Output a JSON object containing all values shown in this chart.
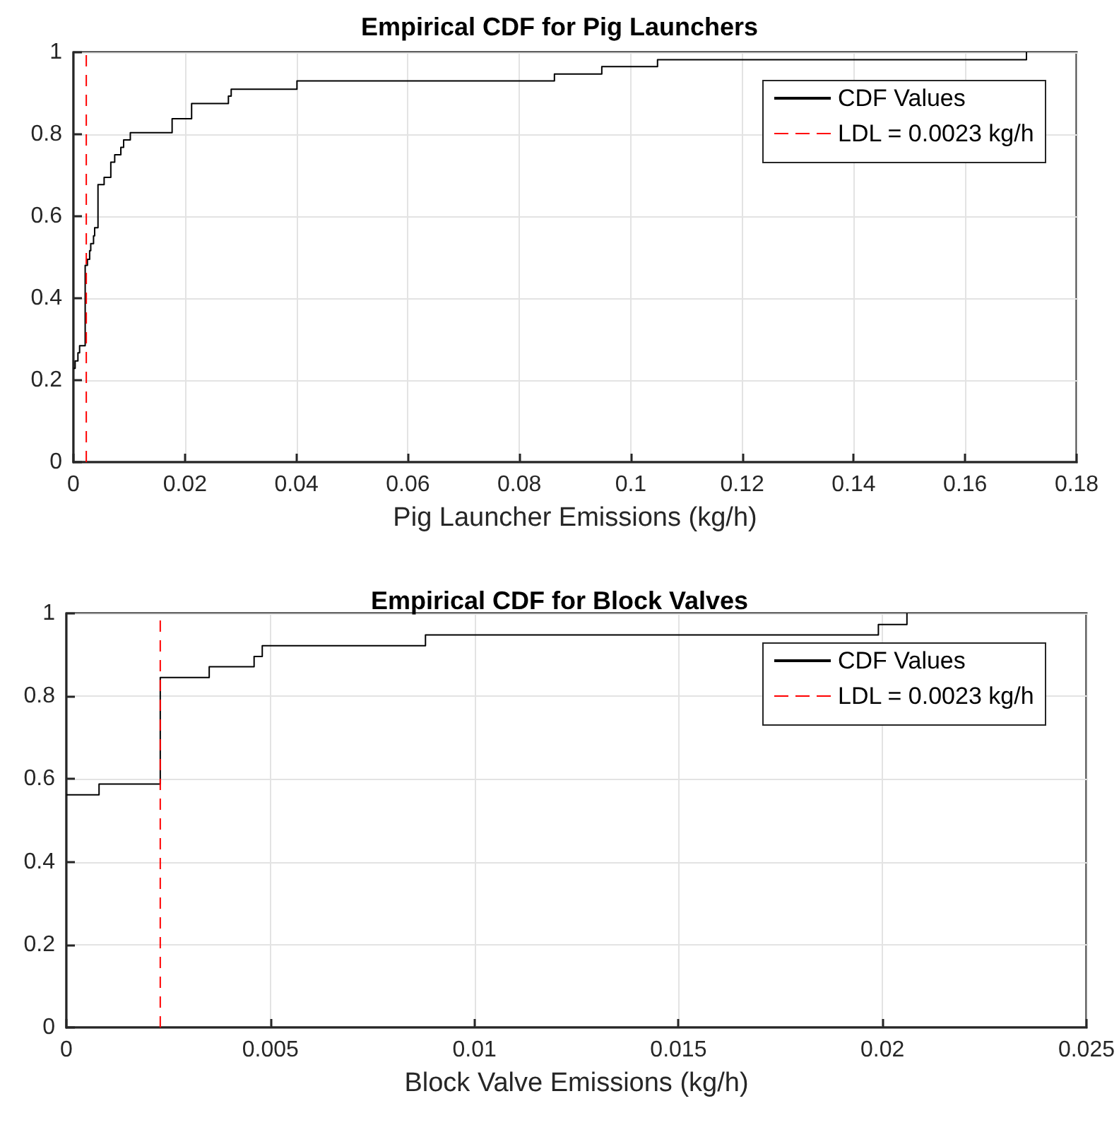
{
  "chart_data": [
    {
      "type": "step",
      "title": "Empirical CDF for Pig Launchers",
      "xlabel": "Pig Launcher Emissions (kg/h)",
      "xlim": [
        0,
        0.18
      ],
      "xticks": [
        0,
        0.02,
        0.04,
        0.06,
        0.08,
        0.1,
        0.12,
        0.14,
        0.16,
        0.18
      ],
      "ylim": [
        0,
        1
      ],
      "yticks": [
        0,
        0.2,
        0.4,
        0.6,
        0.8,
        1
      ],
      "series": [
        {
          "name": "CDF Values",
          "color": "#000000",
          "x": [
            0,
            0.0003,
            0.0008,
            0.0011,
            0.0021,
            0.0025,
            0.0029,
            0.0031,
            0.0036,
            0.0038,
            0.0044,
            0.0055,
            0.0067,
            0.0074,
            0.0085,
            0.009,
            0.0102,
            0.0177,
            0.0212,
            0.0278,
            0.0283,
            0.0401,
            0.0863,
            0.0948,
            0.1048,
            0.171
          ],
          "values": [
            0.229,
            0.247,
            0.267,
            0.284,
            0.48,
            0.495,
            0.516,
            0.533,
            0.552,
            0.572,
            0.677,
            0.695,
            0.732,
            0.75,
            0.768,
            0.786,
            0.804,
            0.838,
            0.875,
            0.893,
            0.91,
            0.93,
            0.947,
            0.965,
            0.982,
            1
          ]
        },
        {
          "name": "LDL = 0.0023 kg/h",
          "type": "line",
          "color": "#ff0000",
          "line_style": "dashed",
          "x": [
            0.0023,
            0.0023
          ],
          "values": [
            0,
            1
          ]
        }
      ],
      "grid": true,
      "legend": "top right",
      "marker": "none",
      "line_style": "solid"
    },
    {
      "type": "step",
      "title": "Empirical CDF for Block Valves",
      "xlabel": "Block Valve Emissions (kg/h)",
      "xlim": [
        0,
        0.025
      ],
      "xticks": [
        0,
        0.005,
        0.01,
        0.015,
        0.02,
        0.025
      ],
      "ylim": [
        0,
        1
      ],
      "yticks": [
        0,
        0.2,
        0.4,
        0.6,
        0.8,
        1
      ],
      "series": [
        {
          "name": "CDF Values",
          "color": "#000000",
          "x": [
            0,
            0.0008,
            0.0023,
            0.0035,
            0.0046,
            0.0048,
            0.0088,
            0.0199,
            0.0206
          ],
          "values": [
            0.562,
            0.588,
            0.845,
            0.871,
            0.896,
            0.922,
            0.948,
            0.973,
            1
          ]
        },
        {
          "name": "LDL = 0.0023 kg/h",
          "type": "line",
          "color": "#ff0000",
          "line_style": "dashed",
          "x": [
            0.0023,
            0.0023
          ],
          "values": [
            0,
            1
          ]
        }
      ],
      "grid": true,
      "legend": "top right",
      "marker": "none",
      "line_style": "solid"
    }
  ]
}
